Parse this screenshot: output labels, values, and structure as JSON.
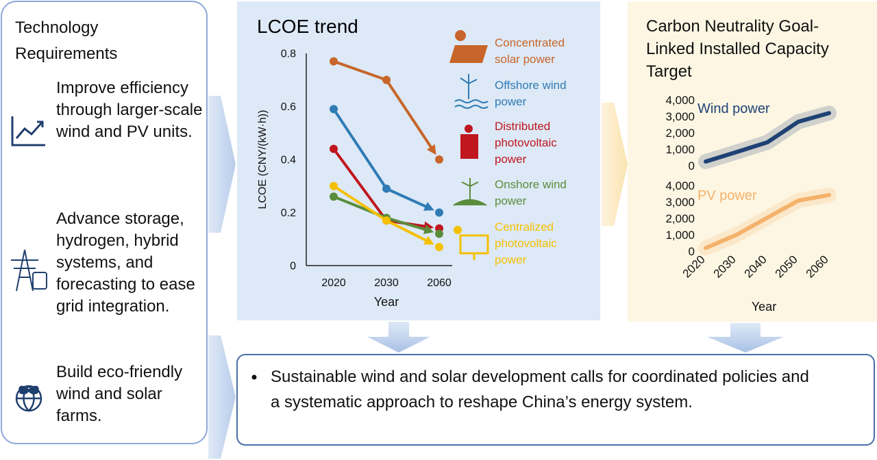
{
  "left_panel": {
    "title": "Technology Requirements",
    "items": [
      "Improve efficiency through larger-scale wind and PV units.",
      "Advance storage, hydrogen, hybrid systems, and forecasting to ease grid integration.",
      "Build eco-friendly wind and solar farms."
    ]
  },
  "right_panel": {
    "title": "Carbon Neutrality Goal-Linked Installed Capacity Target"
  },
  "summary": {
    "text": "Sustainable wind and solar development calls for coordinated policies and a systematic approach to reshape China’s energy system."
  },
  "chart_data": [
    {
      "type": "line",
      "title": "LCOE trend",
      "xlabel": "Year",
      "ylabel": "LCOE (CNY/(kW·h))",
      "categories": [
        "2020",
        "2030",
        "2060"
      ],
      "ylim": [
        0,
        0.8
      ],
      "yticks": [
        0,
        0.2,
        0.4,
        0.6,
        0.8
      ],
      "series": [
        {
          "name": "Concentrated solar power",
          "color": "#c8652a",
          "values": [
            0.77,
            0.7,
            0.4
          ]
        },
        {
          "name": "Offshore wind power",
          "color": "#2f7bb5",
          "values": [
            0.59,
            0.29,
            0.2
          ]
        },
        {
          "name": "Distributed photovoltaic power",
          "color": "#c0161e",
          "values": [
            0.44,
            0.17,
            0.14
          ]
        },
        {
          "name": "Onshore wind power",
          "color": "#5a8c3c",
          "values": [
            0.26,
            0.18,
            0.12
          ]
        },
        {
          "name": "Centralized photovoltaic power",
          "color": "#f5c000",
          "values": [
            0.3,
            0.17,
            0.07
          ]
        }
      ]
    },
    {
      "type": "line",
      "categories": [
        null,
        null,
        null,
        null,
        null
      ],
      "ylim": [
        0,
        4000
      ],
      "yticks": [
        0,
        {
          "value": 1000,
          "label": "1,000"
        },
        {
          "value": 2000,
          "label": "2,000"
        },
        {
          "value": 3000,
          "label": "3,000"
        },
        {
          "value": 4000,
          "label": "4,000"
        }
      ],
      "series": [
        {
          "name": "Wind power",
          "color": "#1f4274",
          "values": [
            250,
            830,
            1420,
            2670,
            3200
          ]
        }
      ]
    },
    {
      "type": "line",
      "xlabel": "Year",
      "categories": [
        "2020",
        "2030",
        "2040",
        "2050",
        "2060"
      ],
      "ylim": [
        0,
        4000
      ],
      "yticks": [
        0,
        {
          "value": 1000,
          "label": "1,000"
        },
        {
          "value": 2000,
          "label": "2,000"
        },
        {
          "value": 3000,
          "label": "3,000"
        },
        {
          "value": 4000,
          "label": "4,000"
        }
      ],
      "series": [
        {
          "name": "PV power",
          "color": "#f5b26b",
          "values": [
            200,
            1000,
            2040,
            3080,
            3420
          ]
        }
      ]
    }
  ]
}
